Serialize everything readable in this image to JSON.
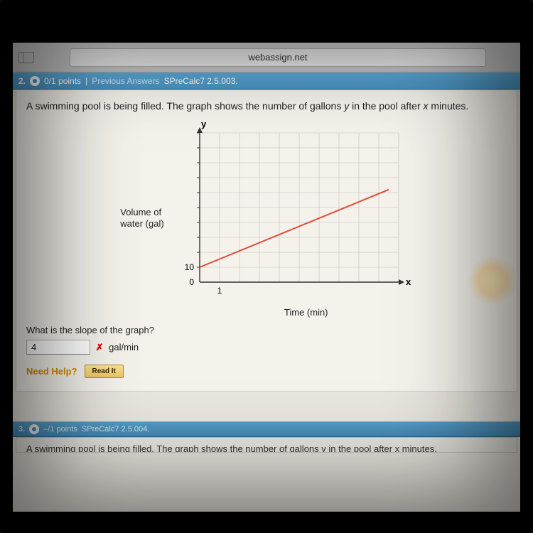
{
  "browser": {
    "url": "webassign.net"
  },
  "question": {
    "number": "2.",
    "points": "0/1 points",
    "pipe": "|",
    "prev_answers": "Previous Answers",
    "assignment_ref": "SPreCalc7 2.5.003.",
    "text_pre": "A swimming pool is being filled. The graph shows the number of gallons ",
    "var_y": "y",
    "text_mid": " in the pool after ",
    "var_x": "x",
    "text_post": " minutes."
  },
  "chart": {
    "type": "line",
    "y_axis_label_line1": "Volume of",
    "y_axis_label_line2": "water (gal)",
    "x_axis_label": "Time (min)",
    "y_label_top": "y",
    "x_label_right": "x",
    "x_tick_label": "1",
    "y_tick_label": "10",
    "origin_label": "0",
    "xlim": [
      0,
      10
    ],
    "ylim": [
      0,
      100
    ],
    "grid_step_x": 1,
    "grid_step_y": 10,
    "line_start": [
      0,
      10
    ],
    "line_end": [
      9.5,
      62
    ],
    "line_color": "#e24a33",
    "axis_color": "#333333",
    "grid_color": "#bdbdbd",
    "background_color": "#f4f2eb",
    "line_width": 2,
    "font_size_labels": 13
  },
  "answer": {
    "prompt": "What is the slope of the graph?",
    "value": "4",
    "wrong_marker": "✗",
    "unit": "gal/min"
  },
  "help": {
    "label": "Need Help?",
    "readit": "Read It"
  },
  "next_question": {
    "number": "3.",
    "points": "–/1 points",
    "assignment_ref": "SPreCalc7 2.5.004.",
    "text": "A swimming pool is being filled. The graph shows the number of gallons y in the pool after x minutes."
  }
}
